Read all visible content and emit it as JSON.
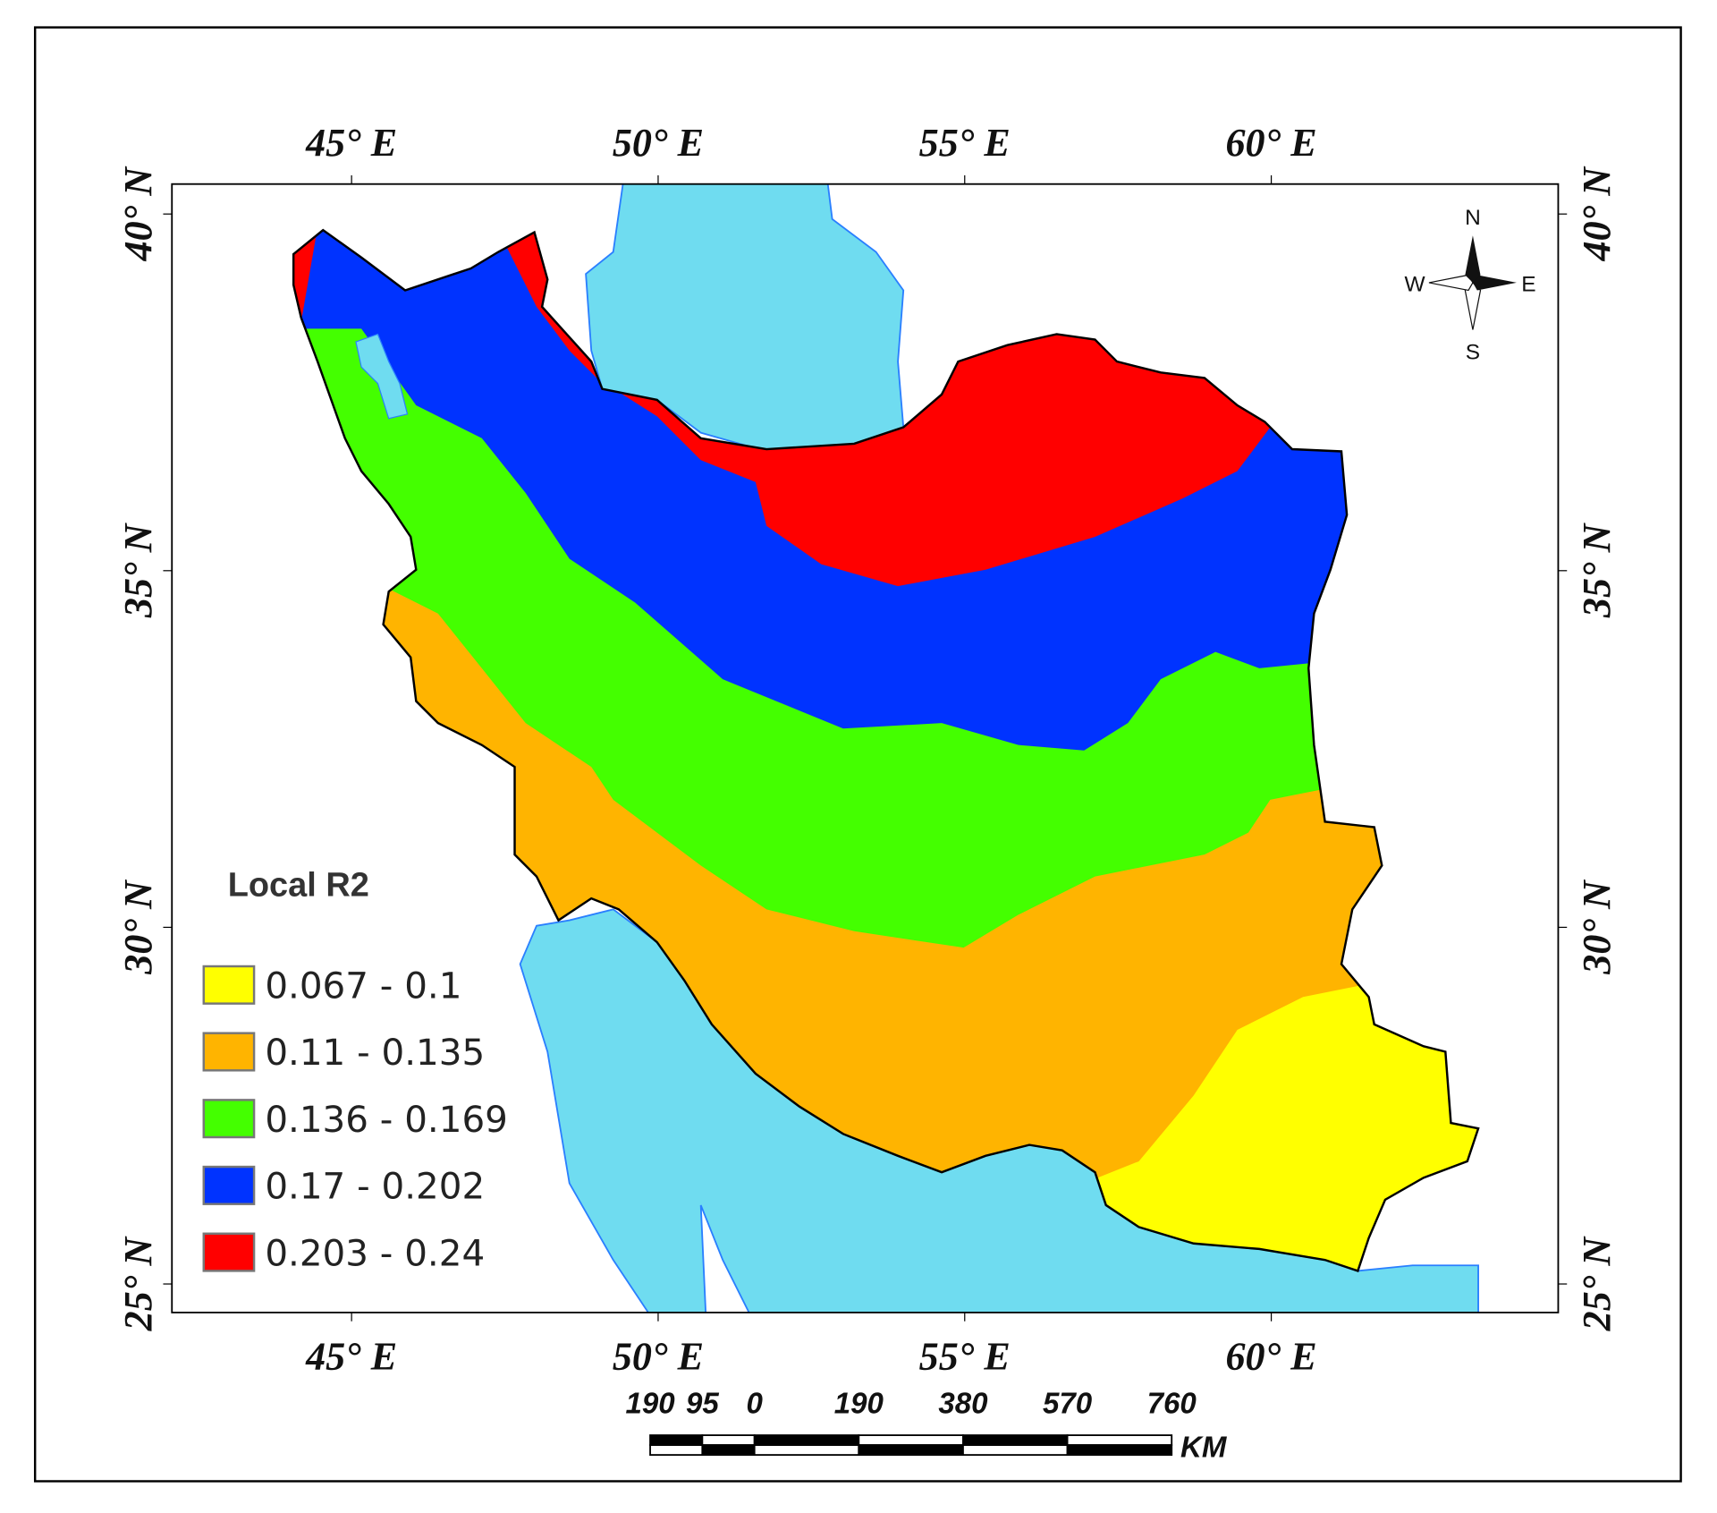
{
  "map": {
    "xlim": [
      42.07,
      64.68
    ],
    "ylim": [
      24.6,
      40.42
    ],
    "longitude_ticks": [
      {
        "value": 45,
        "label": "45° E"
      },
      {
        "value": 50,
        "label": "50° E"
      },
      {
        "value": 55,
        "label": "55° E"
      },
      {
        "value": 60,
        "label": "60° E"
      }
    ],
    "latitude_ticks": [
      {
        "value": 40,
        "label": "40° N"
      },
      {
        "value": 35,
        "label": "35° N"
      },
      {
        "value": 30,
        "label": "30° N"
      },
      {
        "value": 25,
        "label": "25° N"
      }
    ],
    "legend": {
      "title": "Local R2",
      "items": [
        {
          "label": "0.067 - 0.1",
          "color": "#ffff00"
        },
        {
          "label": "0.11 - 0.135",
          "color": "#ffb400"
        },
        {
          "label": "0.136 - 0.169",
          "color": "#44ff00"
        },
        {
          "label": "0.17 - 0.202",
          "color": "#0033ff"
        },
        {
          "label": "0.203 - 0.24",
          "color": "#ff0000"
        }
      ]
    },
    "water_color": "#6fdcf0",
    "compass": {
      "north": "N",
      "south": "S",
      "east": "E",
      "west": "W"
    },
    "scale_bar": {
      "ticks": [
        {
          "value": -190,
          "label": "190"
        },
        {
          "value": -95,
          "label": "95"
        },
        0,
        190,
        380,
        570,
        760
      ],
      "unit": "KM"
    }
  }
}
